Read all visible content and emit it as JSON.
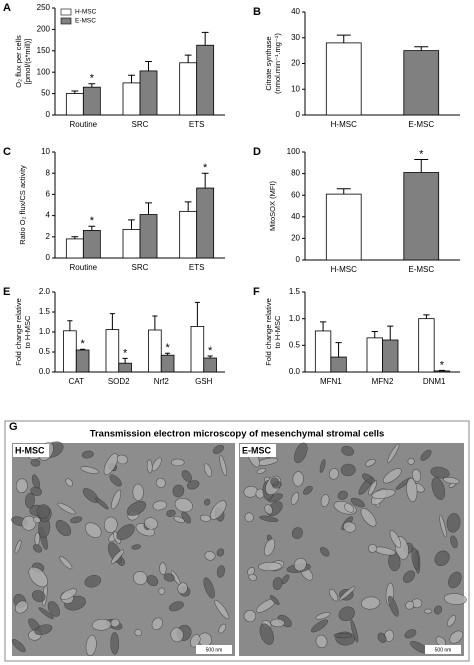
{
  "chart_data": [
    {
      "type": "bar",
      "panel": "A",
      "ylabel": [
        "O₂ flux per cells",
        "[pmol/(s*mill)]"
      ],
      "categories": [
        "Routine",
        "SRC",
        "ETS"
      ],
      "ylim": [
        0,
        250
      ],
      "yticks": [
        0,
        50,
        100,
        150,
        200,
        250
      ],
      "legend": "upper left",
      "series": [
        {
          "name": "H-MSC",
          "color": "#ffffff",
          "values": [
            50,
            75,
            122
          ],
          "errors": [
            6,
            18,
            18
          ],
          "annotations": [
            null,
            null,
            null
          ]
        },
        {
          "name": "E-MSC",
          "color": "#808080",
          "values": [
            65,
            103,
            163
          ],
          "errors": [
            8,
            22,
            30
          ],
          "annotations": [
            "*",
            null,
            null
          ]
        }
      ]
    },
    {
      "type": "bar",
      "panel": "B",
      "ylabel": [
        "Citrate synthase",
        "(nmol.min⁻¹.mg⁻¹)"
      ],
      "categories": [
        "H-MSC",
        "E-MSC"
      ],
      "ylim": [
        0,
        40
      ],
      "yticks": [
        0,
        10,
        20,
        30,
        40
      ],
      "values": [
        28,
        25
      ],
      "errors": [
        3,
        1.5
      ],
      "colors": [
        "#ffffff",
        "#808080"
      ],
      "annotations": [
        null,
        null
      ]
    },
    {
      "type": "bar",
      "panel": "C",
      "ylabel": [
        "Ratio O₂ flux/CS activity"
      ],
      "categories": [
        "Routine",
        "SRC",
        "ETS"
      ],
      "ylim": [
        0,
        10
      ],
      "yticks": [
        0,
        2,
        4,
        6,
        8,
        10
      ],
      "series": [
        {
          "color": "#ffffff",
          "values": [
            1.8,
            2.7,
            4.4
          ],
          "errors": [
            0.2,
            0.9,
            0.9
          ],
          "annotations": [
            null,
            null,
            null
          ]
        },
        {
          "color": "#808080",
          "values": [
            2.6,
            4.1,
            6.6
          ],
          "errors": [
            0.4,
            1.1,
            1.4
          ],
          "annotations": [
            "*",
            null,
            "*"
          ]
        }
      ]
    },
    {
      "type": "bar",
      "panel": "D",
      "ylabel": [
        "MitoSOX (MFI)"
      ],
      "categories": [
        "H-MSC",
        "E-MSC"
      ],
      "ylim": [
        0,
        100
      ],
      "yticks": [
        0,
        20,
        40,
        60,
        80,
        100
      ],
      "values": [
        61,
        81
      ],
      "errors": [
        5,
        12
      ],
      "colors": [
        "#ffffff",
        "#808080"
      ],
      "annotations": [
        null,
        "*"
      ]
    },
    {
      "type": "bar",
      "panel": "E",
      "ylabel": [
        "Fold change relative",
        "to H-MSC"
      ],
      "categories": [
        "CAT",
        "SOD2",
        "Nrf2",
        "GSH"
      ],
      "ylim": [
        0,
        2
      ],
      "yticks": [
        {
          "value": 0,
          "label": "0.0"
        },
        0.5,
        {
          "value": 1,
          "label": "1.0"
        },
        1.5,
        {
          "value": 2,
          "label": "2.0"
        }
      ],
      "series": [
        {
          "color": "#ffffff",
          "values": [
            1.03,
            1.06,
            1.05,
            1.14
          ],
          "errors": [
            0.25,
            0.4,
            0.35,
            0.6
          ],
          "annotations": [
            null,
            null,
            null,
            null
          ]
        },
        {
          "color": "#808080",
          "values": [
            0.55,
            0.22,
            0.42,
            0.35
          ],
          "errors": [
            0.02,
            0.12,
            0.05,
            0.05
          ],
          "annotations": [
            "*",
            "*",
            "*",
            "*"
          ]
        }
      ]
    },
    {
      "type": "bar",
      "panel": "F",
      "ylabel": [
        "Fold change relative",
        "to H-MSC"
      ],
      "categories": [
        "MFN1",
        "MFN2",
        "DNM1"
      ],
      "ylim": [
        0,
        1.5
      ],
      "yticks": [
        {
          "value": 0,
          "label": "0.0"
        },
        0.5,
        {
          "value": 1,
          "label": "1.0"
        },
        1.5
      ],
      "series": [
        {
          "color": "#ffffff",
          "values": [
            0.77,
            0.64,
            1.0
          ],
          "errors": [
            0.17,
            0.12,
            0.07
          ],
          "annotations": [
            null,
            null,
            null
          ]
        },
        {
          "color": "#808080",
          "values": [
            0.28,
            0.6,
            0.02
          ],
          "errors": [
            0.27,
            0.26,
            0.01
          ],
          "annotations": [
            null,
            null,
            "*"
          ]
        }
      ]
    }
  ],
  "panel_g": {
    "panel": "G",
    "title": "Transmission electron microscopy of mesenchymal stromal cells",
    "images": [
      {
        "label": "H-MSC",
        "scale_bar": "500 nm"
      },
      {
        "label": "E-MSC",
        "scale_bar": "500 nm"
      }
    ]
  }
}
